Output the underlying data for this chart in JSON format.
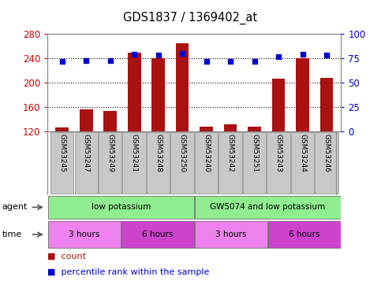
{
  "title": "GDS1837 / 1369402_at",
  "samples": [
    "GSM53245",
    "GSM53247",
    "GSM53249",
    "GSM53241",
    "GSM53248",
    "GSM53250",
    "GSM53240",
    "GSM53242",
    "GSM53251",
    "GSM53243",
    "GSM53244",
    "GSM53246"
  ],
  "counts": [
    126,
    156,
    153,
    249,
    240,
    265,
    127,
    132,
    128,
    206,
    240,
    208
  ],
  "percentiles": [
    72,
    73,
    73,
    79,
    78,
    80,
    72,
    72,
    72,
    77,
    79,
    78
  ],
  "ylim_left": [
    120,
    280
  ],
  "ylim_right": [
    0,
    100
  ],
  "yticks_left": [
    120,
    160,
    200,
    240,
    280
  ],
  "yticks_right": [
    0,
    25,
    50,
    75,
    100
  ],
  "agent_groups": [
    {
      "label": "low potassium",
      "start": 0,
      "end": 6,
      "color": "#90EE90"
    },
    {
      "label": "GW5074 and low potassium",
      "start": 6,
      "end": 12,
      "color": "#90EE90"
    }
  ],
  "time_groups": [
    {
      "label": "3 hours",
      "start": 0,
      "end": 3,
      "color": "#EE82EE"
    },
    {
      "label": "6 hours",
      "start": 3,
      "end": 6,
      "color": "#CC44CC"
    },
    {
      "label": "3 hours",
      "start": 6,
      "end": 9,
      "color": "#EE82EE"
    },
    {
      "label": "6 hours",
      "start": 9,
      "end": 12,
      "color": "#CC44CC"
    }
  ],
  "bar_color": "#AA1111",
  "dot_color": "#0000CC",
  "tick_color_left": "#CC0000",
  "tick_color_right": "#0000CC",
  "bg_color": "#FFFFFF",
  "legend_count_color": "#AA1111",
  "legend_pct_color": "#0000CC",
  "bar_width": 0.55,
  "sample_box_color": "#C8C8C8",
  "sample_box_edge": "#888888"
}
